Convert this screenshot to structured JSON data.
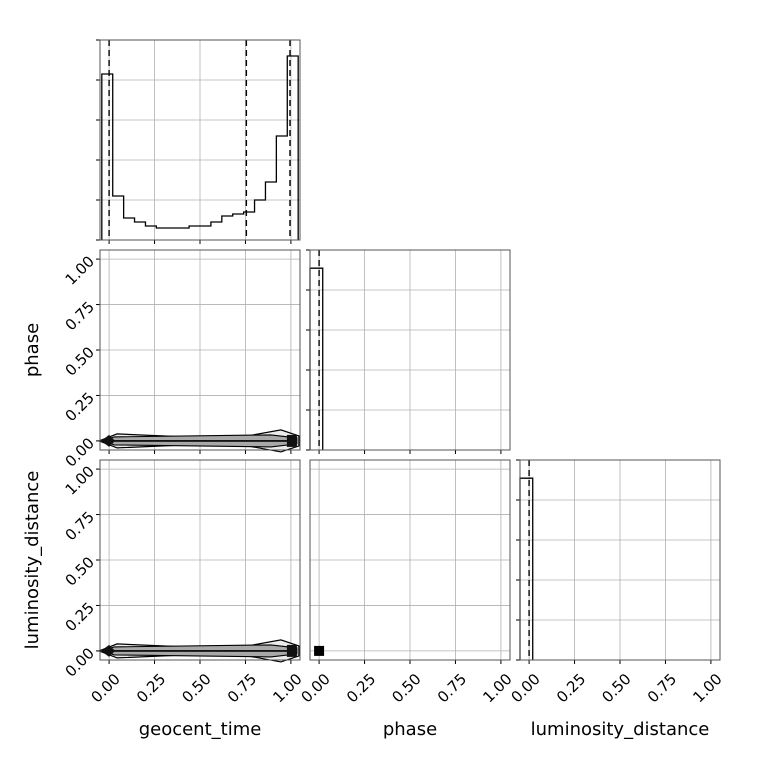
{
  "chart_data": {
    "type": "corner",
    "parameters": [
      "geocent_time",
      "phase",
      "luminosity_distance"
    ],
    "axis_labels": {
      "x": [
        "geocent_time",
        "phase",
        "luminosity_distance"
      ],
      "y": [
        "",
        "phase",
        "luminosity_distance"
      ]
    },
    "tick_values": [
      0.0,
      0.25,
      0.5,
      0.75,
      1.0
    ],
    "tick_labels": [
      "0.00",
      "0.25",
      "0.50",
      "0.75",
      "1.00"
    ],
    "axis_range": [
      -0.05,
      1.05
    ],
    "grid": true,
    "diagonal": [
      {
        "parameter": "geocent_time",
        "bin_edges": [
          -0.04,
          0.02,
          0.08,
          0.14,
          0.2,
          0.26,
          0.32,
          0.38,
          0.44,
          0.5,
          0.56,
          0.62,
          0.68,
          0.74,
          0.8,
          0.86,
          0.92,
          0.98,
          1.04
        ],
        "counts": [
          0.83,
          0.22,
          0.11,
          0.09,
          0.07,
          0.06,
          0.06,
          0.06,
          0.07,
          0.07,
          0.09,
          0.12,
          0.13,
          0.14,
          0.2,
          0.29,
          0.52,
          0.92
        ],
        "ylim": [
          0,
          1.0
        ],
        "quantile_lines": [
          0.0,
          0.755,
          0.995
        ]
      },
      {
        "parameter": "phase",
        "bin_edges": [
          -0.05,
          0.0,
          0.02
        ],
        "counts": [
          1.0,
          1.0
        ],
        "ylim": [
          0,
          1.1
        ],
        "quantile_lines": [
          0.0
        ]
      },
      {
        "parameter": "luminosity_distance",
        "bin_edges": [
          -0.05,
          0.0,
          0.02
        ],
        "counts": [
          1.0,
          1.0
        ],
        "ylim": [
          0,
          1.1
        ],
        "quantile_lines": [
          0.0
        ]
      }
    ],
    "off_diagonal": [
      {
        "x_param": "geocent_time",
        "y_param": "phase",
        "density_at_y": 0.0,
        "modes_x": [
          0.0,
          1.0
        ]
      },
      {
        "x_param": "geocent_time",
        "y_param": "luminosity_distance",
        "density_at_y": 0.0,
        "modes_x": [
          0.0,
          1.0
        ]
      },
      {
        "x_param": "phase",
        "y_param": "luminosity_distance",
        "points": [
          [
            0.0,
            0.0
          ]
        ]
      }
    ]
  }
}
